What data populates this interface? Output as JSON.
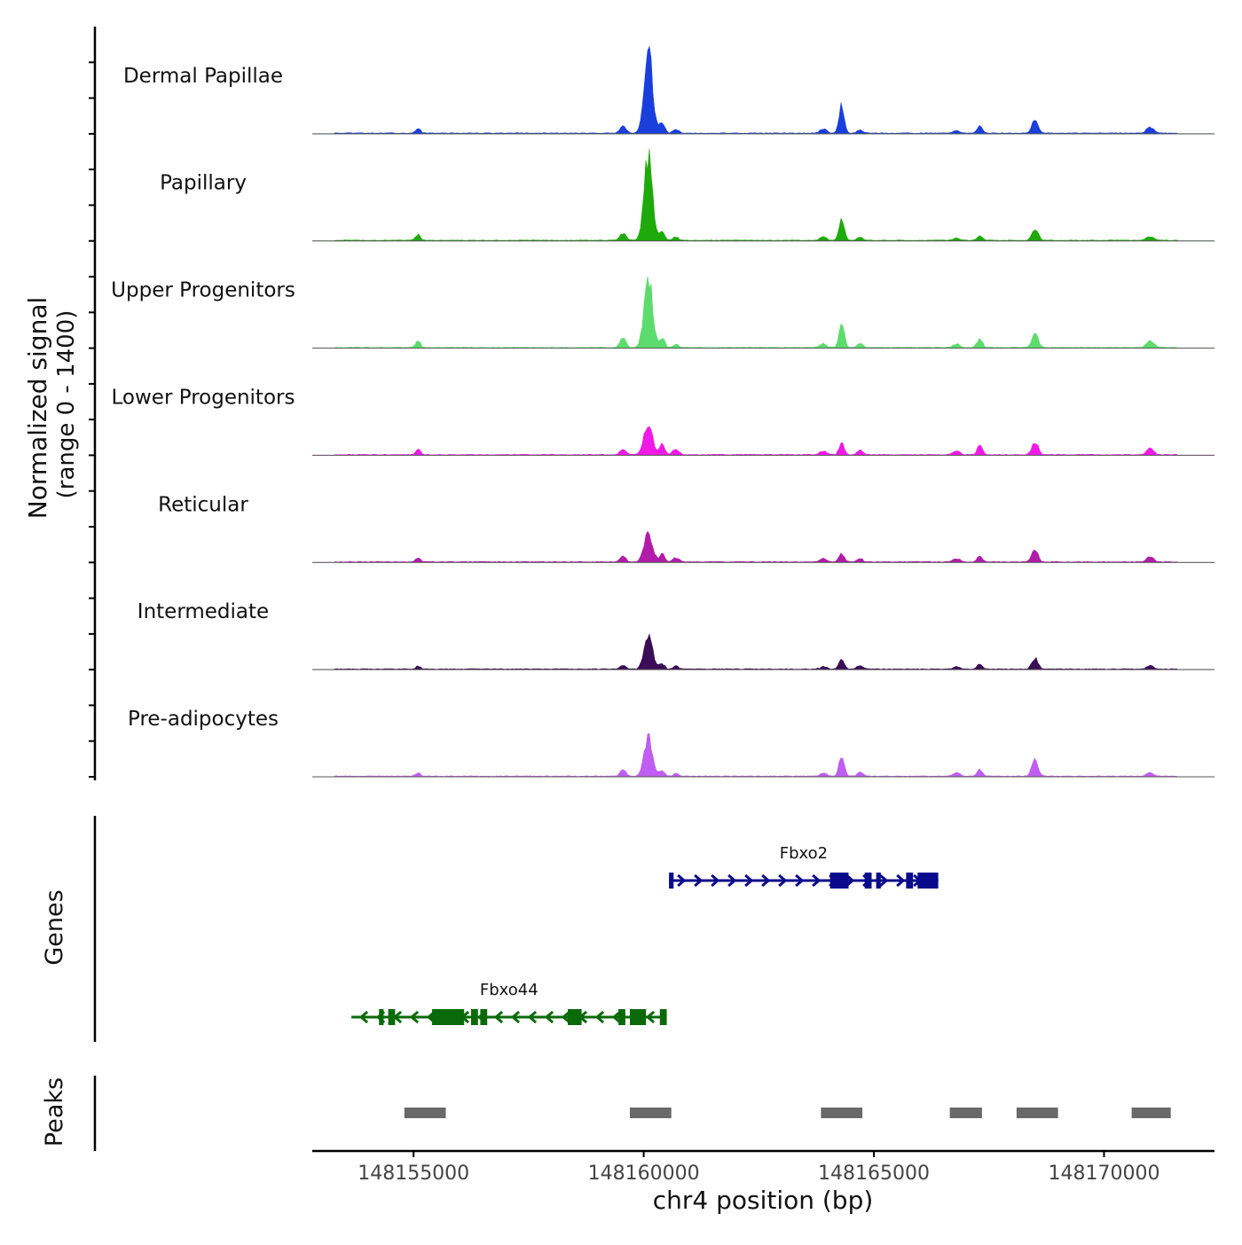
{
  "chart_data": {
    "type": "area",
    "title": "",
    "chromosome": "chr4",
    "xlabel": "chr4 position (bp)",
    "xlim": [
      148152800,
      148172400
    ],
    "x_ticks": [
      148155000,
      148160000,
      148165000,
      148170000
    ],
    "x_tick_labels": [
      "148155000",
      "148160000",
      "148165000",
      "148170000"
    ],
    "signal": {
      "ylabel_line1": "Normalized signal",
      "ylabel_line2": "(range 0 - 1400)",
      "ylim": [
        0,
        1400
      ],
      "peak_centers": [
        148155100,
        148159550,
        148160100,
        148160400,
        148160700,
        148163900,
        148164300,
        148164700,
        148166800,
        148167300,
        148168500,
        148171000
      ],
      "series": [
        {
          "name": "Dermal Papillae",
          "color": "#1a3fdc",
          "values": [
            80,
            120,
            1400,
            180,
            60,
            70,
            480,
            60,
            40,
            120,
            220,
            100
          ]
        },
        {
          "name": "Papillary",
          "color": "#1eaa0a",
          "values": [
            95,
            120,
            1400,
            160,
            55,
            60,
            350,
            50,
            40,
            75,
            200,
            60
          ]
        },
        {
          "name": "Upper Progenitors",
          "color": "#5cdc6c",
          "values": [
            100,
            150,
            1170,
            170,
            55,
            60,
            380,
            60,
            60,
            150,
            240,
            120
          ]
        },
        {
          "name": "Lower Progenitors",
          "color": "#f01ae6",
          "values": [
            90,
            90,
            520,
            170,
            90,
            60,
            190,
            70,
            60,
            150,
            220,
            110
          ]
        },
        {
          "name": "Reticular",
          "color": "#b11ca8",
          "values": [
            70,
            90,
            480,
            130,
            70,
            60,
            140,
            60,
            50,
            90,
            190,
            90
          ]
        },
        {
          "name": "Intermediate",
          "color": "#3a0d56",
          "values": [
            50,
            60,
            560,
            90,
            50,
            40,
            170,
            60,
            40,
            80,
            180,
            60
          ]
        },
        {
          "name": "Pre-adipocytes",
          "color": "#bf5ef0",
          "values": [
            50,
            100,
            650,
            90,
            50,
            50,
            320,
            70,
            60,
            110,
            290,
            60
          ]
        }
      ]
    },
    "genes": {
      "track_label": "Genes",
      "items": [
        {
          "name": "Fbxo2",
          "strand": "+",
          "start": 148160550,
          "end": 148166400,
          "color": "#0a0a8c",
          "exons": [
            [
              148160550,
              148160650
            ],
            [
              148164050,
              148164450
            ],
            [
              148164800,
              148164950
            ],
            [
              148165050,
              148165150
            ],
            [
              148165700,
              148165850
            ],
            [
              148165950,
              148166400
            ]
          ]
        },
        {
          "name": "Fbxo44",
          "strand": "-",
          "start": 148153650,
          "end": 148160500,
          "color": "#0a6a0a",
          "exons": [
            [
              148154250,
              148154350
            ],
            [
              148154450,
              148154600
            ],
            [
              148155400,
              148156100
            ],
            [
              148156250,
              148156400
            ],
            [
              148156450,
              148156600
            ],
            [
              148158350,
              148158650
            ],
            [
              148159450,
              148159600
            ],
            [
              148159700,
              148160050
            ],
            [
              148160350,
              148160500
            ]
          ]
        }
      ]
    },
    "peaks": {
      "track_label": "Peaks",
      "color": "#696969",
      "regions": [
        [
          148154800,
          148155700
        ],
        [
          148159700,
          148160600
        ],
        [
          148163850,
          148164750
        ],
        [
          148166650,
          148167350
        ],
        [
          148168100,
          148169000
        ],
        [
          148170600,
          148171450
        ]
      ]
    }
  }
}
